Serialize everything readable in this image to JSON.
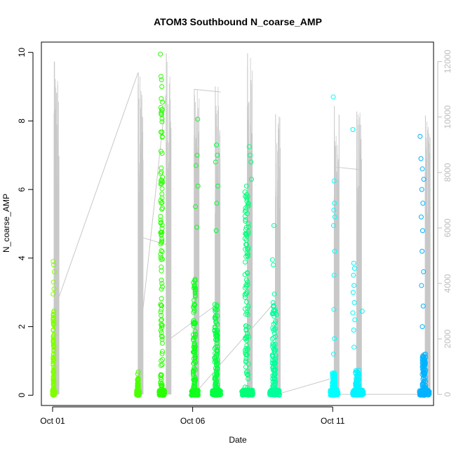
{
  "chart_data": {
    "type": "scatter",
    "title": "ATOM3 Southbound N_coarse_AMP",
    "xlabel": "Date",
    "ylabel": "N_coarse_AMP",
    "x_unit": "day of October",
    "xlim": [
      0.6,
      14.6
    ],
    "ylim": [
      -0.3,
      10.3
    ],
    "x_ticks": [
      {
        "value": 1,
        "label": "Oct 01"
      },
      {
        "value": 6,
        "label": "Oct 06"
      },
      {
        "value": 11,
        "label": "Oct 11"
      }
    ],
    "y_ticks": [
      0,
      2,
      4,
      6,
      8,
      10
    ],
    "y2_ticks": [
      0,
      2000,
      4000,
      6000,
      8000,
      10000,
      12000
    ],
    "y2_lim": [
      -400,
      12700
    ],
    "y2_color": "#bdbdbd",
    "series": [
      {
        "group": 1,
        "color": "#7fff00",
        "x_range": [
          1.0,
          1.08
        ],
        "y_low": 0.0,
        "y_dense_max": 2.5,
        "y_max": 3.9,
        "outliers": [
          [
            1.02,
            3.9
          ],
          [
            1.04,
            3.8
          ],
          [
            1.06,
            3.6
          ],
          [
            1.03,
            3.3
          ],
          [
            1.05,
            3.1
          ],
          [
            1.02,
            2.95
          ]
        ]
      },
      {
        "group": 2,
        "color": "#4cff00",
        "x_range": [
          4.0,
          4.1
        ],
        "y_low": 0.0,
        "y_dense_max": 0.5,
        "y_max": 0.68,
        "outliers": [
          [
            4.06,
            0.68
          ],
          [
            4.04,
            0.62
          ]
        ]
      },
      {
        "group": 3,
        "color": "#2aff00",
        "x_range": [
          4.8,
          5.0
        ],
        "y_low": 0.0,
        "y_dense_max": 8.4,
        "y_max": 9.95,
        "outliers": [
          [
            4.85,
            9.95
          ],
          [
            4.87,
            9.3
          ],
          [
            4.89,
            9.2
          ],
          [
            4.9,
            9.0
          ],
          [
            4.88,
            8.65
          ],
          [
            4.92,
            8.55
          ]
        ]
      },
      {
        "group": 4,
        "color": "#10ff1c",
        "x_range": [
          5.95,
          6.2
        ],
        "y_low": 0.0,
        "y_dense_max": 3.5,
        "y_max": 8.05,
        "outliers": [
          [
            6.18,
            8.05
          ],
          [
            6.16,
            7.0
          ],
          [
            6.12,
            6.7
          ],
          [
            6.19,
            6.1
          ],
          [
            6.1,
            5.5
          ],
          [
            6.15,
            4.9
          ]
        ]
      },
      {
        "group": 5,
        "color": "#00ff40",
        "x_range": [
          6.7,
          7.0
        ],
        "y_low": 0.0,
        "y_dense_max": 2.7,
        "y_max": 7.3,
        "outliers": [
          [
            6.85,
            7.3
          ],
          [
            6.88,
            7.0
          ],
          [
            6.82,
            6.8
          ],
          [
            6.9,
            6.1
          ],
          [
            6.86,
            5.6
          ],
          [
            6.84,
            4.8
          ]
        ]
      },
      {
        "group": 6,
        "color": "#00ff78",
        "x_range": [
          7.75,
          8.15
        ],
        "y_low": 0.0,
        "y_dense_max": 6.0,
        "y_max": 7.25,
        "outliers": [
          [
            8.02,
            7.25
          ],
          [
            8.05,
            7.0
          ],
          [
            8.08,
            6.8
          ],
          [
            8.1,
            6.3
          ],
          [
            7.92,
            6.1
          ],
          [
            7.88,
            5.8
          ]
        ]
      },
      {
        "group": 7,
        "color": "#00ff9a",
        "x_range": [
          8.75,
          9.1
        ],
        "y_low": 0.0,
        "y_dense_max": 2.7,
        "y_max": 4.95,
        "outliers": [
          [
            8.9,
            4.95
          ],
          [
            8.85,
            3.95
          ],
          [
            8.88,
            3.8
          ],
          [
            8.92,
            2.95
          ],
          [
            8.87,
            2.7
          ],
          [
            9.0,
            2.35
          ]
        ]
      },
      {
        "group": 8,
        "color": "#00ffff",
        "x_range": [
          10.9,
          11.2
        ],
        "y_low": 0.0,
        "y_dense_max": 0.65,
        "y_max": 8.7,
        "outliers": [
          [
            11.02,
            8.7
          ],
          [
            11.05,
            6.25
          ],
          [
            11.06,
            5.6
          ],
          [
            11.04,
            5.4
          ],
          [
            11.08,
            5.2
          ],
          [
            11.03,
            4.95
          ],
          [
            11.07,
            4.2
          ],
          [
            11.05,
            3.5
          ],
          [
            11.04,
            2.5
          ],
          [
            11.06,
            1.65
          ],
          [
            11.03,
            1.2
          ]
        ]
      },
      {
        "group": 9,
        "color": "#00f4ff",
        "x_range": [
          11.7,
          12.1
        ],
        "y_low": 0.0,
        "y_dense_max": 0.75,
        "y_max": 7.75,
        "outliers": [
          [
            11.72,
            7.75
          ],
          [
            11.75,
            3.85
          ],
          [
            11.78,
            3.7
          ],
          [
            11.74,
            3.5
          ],
          [
            11.76,
            3.2
          ],
          [
            11.73,
            3.0
          ],
          [
            11.77,
            2.7
          ],
          [
            11.72,
            2.4
          ],
          [
            12.05,
            2.45
          ],
          [
            11.79,
            2.2
          ],
          [
            11.75,
            1.9
          ],
          [
            11.76,
            1.4
          ]
        ]
      },
      {
        "group": 10,
        "color": "#00b2ff",
        "x_range": [
          14.1,
          14.45
        ],
        "y_low": 0.0,
        "y_dense_max": 1.2,
        "y_max": 7.55,
        "outliers": [
          [
            14.12,
            7.55
          ],
          [
            14.15,
            6.9
          ],
          [
            14.2,
            6.6
          ],
          [
            14.25,
            6.3
          ],
          [
            14.18,
            6.0
          ],
          [
            14.22,
            5.6
          ],
          [
            14.16,
            5.2
          ],
          [
            14.21,
            4.8
          ],
          [
            14.19,
            4.2
          ],
          [
            14.24,
            3.6
          ],
          [
            14.17,
            3.2
          ],
          [
            14.23,
            2.6
          ],
          [
            14.2,
            2.0
          ]
        ]
      }
    ],
    "secondary_series": {
      "name": "",
      "axis": "right",
      "color": "#c8c8c8",
      "spikes": [
        {
          "x": 1.05,
          "base": 0,
          "peak": 12000
        },
        {
          "x": 4.05,
          "base": 0,
          "peak": 11600
        },
        {
          "x": 5.05,
          "base": 0,
          "peak": 12300
        },
        {
          "x": 6.05,
          "base": 0,
          "peak": 11000
        },
        {
          "x": 6.8,
          "base": 0,
          "peak": 11100
        },
        {
          "x": 7.95,
          "base": 0,
          "peak": 12300
        },
        {
          "x": 8.95,
          "base": 0,
          "peak": 10100
        },
        {
          "x": 11.05,
          "base": 0,
          "peak": 10400
        },
        {
          "x": 11.85,
          "base": 0,
          "peak": 10200
        },
        {
          "x": 14.3,
          "base": 0,
          "peak": 10050
        }
      ],
      "connectors": [
        [
          [
            1.05,
            3000
          ],
          [
            4.05,
            11600
          ]
        ],
        [
          [
            4.05,
            5700
          ],
          [
            5.05,
            5400
          ]
        ],
        [
          [
            4.05,
            1400
          ],
          [
            5.05,
            10800
          ]
        ],
        [
          [
            5.05,
            1900
          ],
          [
            6.8,
            3200
          ]
        ],
        [
          [
            6.05,
            11000
          ],
          [
            7.0,
            10900
          ]
        ],
        [
          [
            6.05,
            0
          ],
          [
            9.0,
            3400
          ]
        ],
        [
          [
            9.0,
            0
          ],
          [
            11.05,
            600
          ]
        ],
        [
          [
            11.05,
            8200
          ],
          [
            12.0,
            8100
          ]
        ],
        [
          [
            11.05,
            0
          ],
          [
            14.45,
            0
          ]
        ]
      ]
    }
  }
}
